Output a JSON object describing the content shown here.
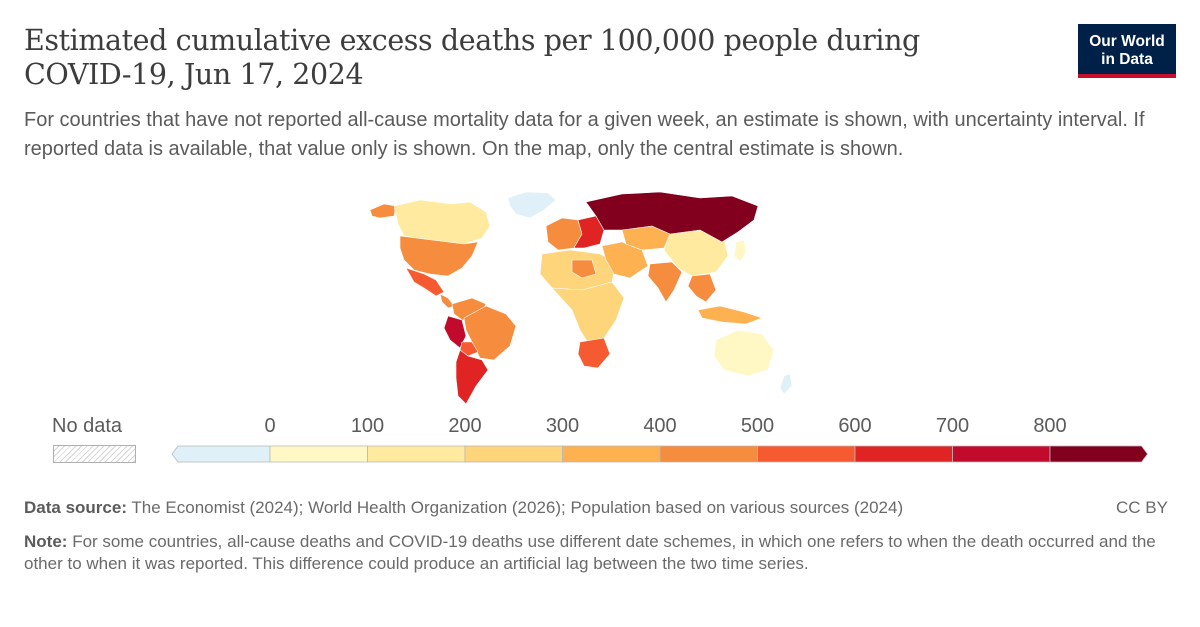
{
  "header": {
    "title": "Estimated cumulative excess deaths per 100,000 people during COVID-19, Jun 17, 2024",
    "subtitle": "For countries that have not reported all-cause mortality data for a given week, an estimate is shown, with uncertainty interval. If reported data is available, that value only is shown. On the map, only the central estimate is shown."
  },
  "logo": {
    "line1": "Our World",
    "line2": "in Data",
    "bg": "#002147",
    "accent": "#c8102e"
  },
  "legend": {
    "no_data_label": "No data",
    "ticks": [
      "0",
      "100",
      "200",
      "300",
      "400",
      "500",
      "600",
      "700",
      "800"
    ],
    "colors": [
      "#dff0f8",
      "#fff8c4",
      "#ffeaa0",
      "#fed57b",
      "#fdb150",
      "#f68c3e",
      "#f55a31",
      "#e02424",
      "#c20a2d",
      "#82001e"
    ]
  },
  "map_regions": [
    {
      "name": "Russia",
      "color": "#82001e"
    },
    {
      "name": "Greenland",
      "color": "#dff0f8"
    },
    {
      "name": "Canada",
      "color": "#ffeaa0"
    },
    {
      "name": "United States",
      "color": "#f68c3e"
    },
    {
      "name": "Mexico",
      "color": "#f55a31"
    },
    {
      "name": "Central America",
      "color": "#f68c3e"
    },
    {
      "name": "Colombia & Venezuela",
      "color": "#f68c3e"
    },
    {
      "name": "Peru",
      "color": "#c20a2d"
    },
    {
      "name": "Brazil",
      "color": "#f68c3e"
    },
    {
      "name": "Bolivia",
      "color": "#f55a31"
    },
    {
      "name": "Argentina & Chile",
      "color": "#e02424"
    },
    {
      "name": "Western Europe",
      "color": "#f68c3e"
    },
    {
      "name": "Eastern Europe",
      "color": "#e02424"
    },
    {
      "name": "North Africa",
      "color": "#fed57b"
    },
    {
      "name": "Libya",
      "color": "#f68c3e"
    },
    {
      "name": "Sub-Saharan Africa",
      "color": "#fed57b"
    },
    {
      "name": "Southern Africa",
      "color": "#f55a31"
    },
    {
      "name": "Middle East",
      "color": "#fdb150"
    },
    {
      "name": "Central Asia",
      "color": "#fdb150"
    },
    {
      "name": "India",
      "color": "#f68c3e"
    },
    {
      "name": "China",
      "color": "#ffeaa0"
    },
    {
      "name": "Southeast Asia",
      "color": "#f68c3e"
    },
    {
      "name": "Japan",
      "color": "#fff8c4"
    },
    {
      "name": "Indonesia",
      "color": "#fdb150"
    },
    {
      "name": "Australia",
      "color": "#fff8c4"
    },
    {
      "name": "New Zealand",
      "color": "#dff0f8"
    }
  ],
  "footer": {
    "source_label": "Data source:",
    "source_text": "The Economist (2024); World Health Organization (2026); Population based on various sources (2024)",
    "license": "CC BY",
    "note_label": "Note:",
    "note_text": "For some countries, all-cause deaths and COVID-19 deaths use different date schemes, in which one refers to when the death occurred and the other to when it was reported. This difference could produce an artificial lag between the two time series."
  }
}
